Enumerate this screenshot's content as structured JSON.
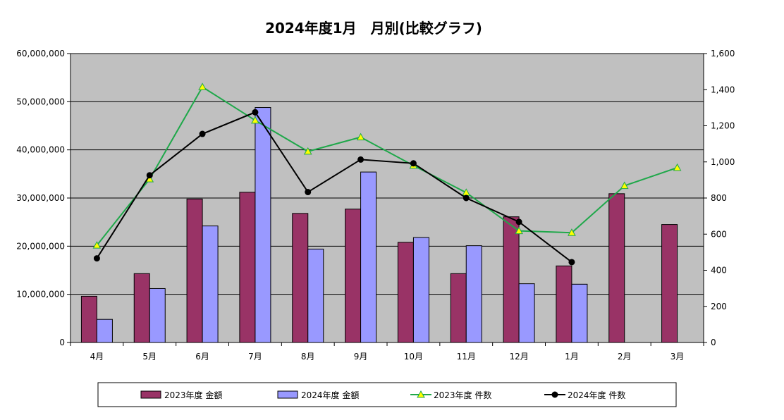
{
  "chart_data": {
    "type": "bar",
    "title": "2024年度1月　月別(比較グラフ)",
    "categories": [
      "4月",
      "5月",
      "6月",
      "7月",
      "8月",
      "9月",
      "10月",
      "11月",
      "12月",
      "1月",
      "2月",
      "3月"
    ],
    "ylim": [
      0,
      60000000
    ],
    "y2lim": [
      0,
      1600
    ],
    "y_ticks": [
      "0",
      "10,000,000",
      "20,000,000",
      "30,000,000",
      "40,000,000",
      "50,000,000",
      "60,000,000"
    ],
    "y2_ticks": [
      "0",
      "200",
      "400",
      "600",
      "800",
      "1,000",
      "1,200",
      "1,400",
      "1,600"
    ],
    "legend_placement": "bottom",
    "plot_background": "#c0c0c0",
    "series": [
      {
        "name": "2023年度 金額",
        "type": "bar",
        "axis": "left",
        "color": "#993366",
        "values": [
          9600000,
          14300000,
          29800000,
          31200000,
          26800000,
          27700000,
          20800000,
          14300000,
          26100000,
          15900000,
          30900000,
          24500000
        ]
      },
      {
        "name": "2024年度 金額",
        "type": "bar",
        "axis": "left",
        "color": "#9999ff",
        "values": [
          4800000,
          11200000,
          24200000,
          48800000,
          19400000,
          35400000,
          21800000,
          20100000,
          12200000,
          12100000,
          null,
          null
        ]
      },
      {
        "name": "2023年度 件数",
        "type": "line",
        "axis": "right",
        "color": "#1fa84a",
        "marker": "triangle",
        "marker_fill": "#ffff00",
        "values": [
          538,
          905,
          1415,
          1230,
          1058,
          1137,
          980,
          830,
          618,
          608,
          868,
          968
        ]
      },
      {
        "name": "2024年度 件数",
        "type": "line",
        "axis": "right",
        "color": "#000000",
        "marker": "circle",
        "marker_fill": "#000000",
        "values": [
          466,
          926,
          1155,
          1275,
          833,
          1013,
          992,
          800,
          668,
          445,
          null,
          null
        ]
      }
    ]
  }
}
